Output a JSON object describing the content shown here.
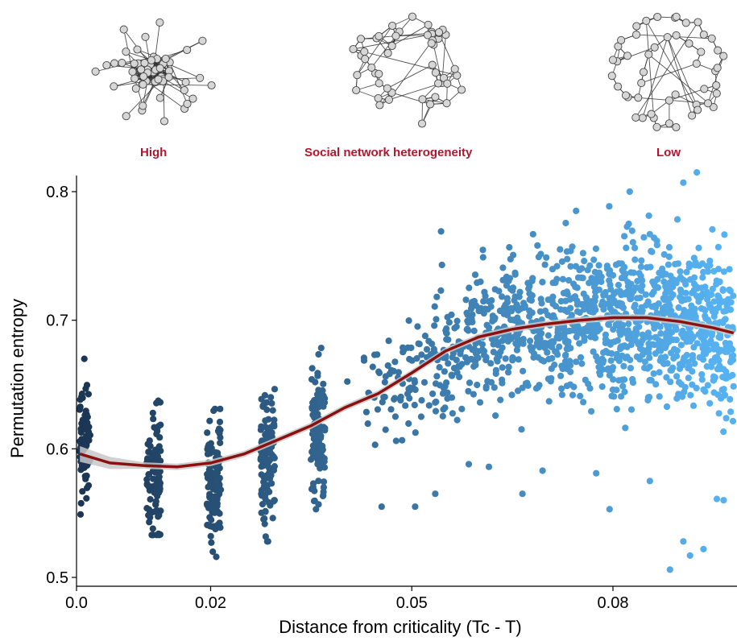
{
  "networks": {
    "high_label": "High",
    "heterogeneity_label": "Social network heterogeneity",
    "low_label": "Low"
  },
  "chart_data": {
    "type": "scatter",
    "title": "",
    "xlabel": "Distance from criticality (Tc - T)",
    "ylabel": "Permutation entropy",
    "xlim": [
      0,
      0.098
    ],
    "ylim": [
      0.495,
      0.815
    ],
    "x_ticks": [
      {
        "value": 0.0,
        "label": "0.0"
      },
      {
        "value": 0.02,
        "label": "0.02"
      },
      {
        "value": 0.05,
        "label": "0.05"
      },
      {
        "value": 0.08,
        "label": "0.08"
      }
    ],
    "y_ticks": [
      {
        "value": 0.5,
        "label": "0.5"
      },
      {
        "value": 0.6,
        "label": "0.6"
      },
      {
        "value": 0.7,
        "label": "0.7"
      },
      {
        "value": 0.8,
        "label": "0.8"
      }
    ],
    "grid": false,
    "legend": "none",
    "point_color_low_x": "#1b3553",
    "point_color_high_x": "#56b1f0",
    "clusters": [
      {
        "x": 0.001,
        "mean": 0.608,
        "sd": 0.024,
        "n": 90,
        "min": 0.549,
        "max": 0.67
      },
      {
        "x": 0.0115,
        "mean": 0.58,
        "sd": 0.024,
        "n": 110,
        "min": 0.533,
        "max": 0.644
      },
      {
        "x": 0.0205,
        "mean": 0.578,
        "sd": 0.025,
        "n": 110,
        "min": 0.516,
        "max": 0.631
      },
      {
        "x": 0.0285,
        "mean": 0.592,
        "sd": 0.026,
        "n": 110,
        "min": 0.528,
        "max": 0.666
      },
      {
        "x": 0.036,
        "mean": 0.61,
        "sd": 0.027,
        "n": 110,
        "min": 0.553,
        "max": 0.691
      }
    ],
    "cloud": {
      "x_range": [
        0.04,
        0.098
      ],
      "n": 1300,
      "sd_start": 0.03,
      "sd_end": 0.045
    },
    "outliers": [
      {
        "x": 0.0745,
        "y": 0.785
      },
      {
        "x": 0.0795,
        "y": 0.553
      },
      {
        "x": 0.0825,
        "y": 0.8
      },
      {
        "x": 0.0855,
        "y": 0.575
      },
      {
        "x": 0.0905,
        "y": 0.807
      },
      {
        "x": 0.0925,
        "y": 0.815
      },
      {
        "x": 0.0905,
        "y": 0.528
      },
      {
        "x": 0.0915,
        "y": 0.517
      },
      {
        "x": 0.0935,
        "y": 0.522
      },
      {
        "x": 0.0885,
        "y": 0.506
      },
      {
        "x": 0.0955,
        "y": 0.561
      },
      {
        "x": 0.0965,
        "y": 0.56
      },
      {
        "x": 0.0665,
        "y": 0.565
      },
      {
        "x": 0.0695,
        "y": 0.583
      },
      {
        "x": 0.0775,
        "y": 0.581
      },
      {
        "x": 0.0545,
        "y": 0.743
      },
      {
        "x": 0.0535,
        "y": 0.565
      },
      {
        "x": 0.0505,
        "y": 0.555
      },
      {
        "x": 0.0455,
        "y": 0.555
      },
      {
        "x": 0.0615,
        "y": 0.586
      },
      {
        "x": 0.0585,
        "y": 0.588
      }
    ],
    "fit_line": {
      "color": "#8b1010",
      "band_color": "#c8c8c8",
      "points": [
        {
          "x": 0.0005,
          "y": 0.596
        },
        {
          "x": 0.005,
          "y": 0.589
        },
        {
          "x": 0.01,
          "y": 0.587
        },
        {
          "x": 0.015,
          "y": 0.586
        },
        {
          "x": 0.02,
          "y": 0.589
        },
        {
          "x": 0.025,
          "y": 0.596
        },
        {
          "x": 0.03,
          "y": 0.607
        },
        {
          "x": 0.035,
          "y": 0.618
        },
        {
          "x": 0.04,
          "y": 0.632
        },
        {
          "x": 0.045,
          "y": 0.643
        },
        {
          "x": 0.05,
          "y": 0.659
        },
        {
          "x": 0.055,
          "y": 0.676
        },
        {
          "x": 0.06,
          "y": 0.687
        },
        {
          "x": 0.065,
          "y": 0.693
        },
        {
          "x": 0.07,
          "y": 0.697
        },
        {
          "x": 0.075,
          "y": 0.7
        },
        {
          "x": 0.08,
          "y": 0.702
        },
        {
          "x": 0.085,
          "y": 0.702
        },
        {
          "x": 0.09,
          "y": 0.699
        },
        {
          "x": 0.095,
          "y": 0.694
        },
        {
          "x": 0.098,
          "y": 0.69
        }
      ]
    }
  }
}
